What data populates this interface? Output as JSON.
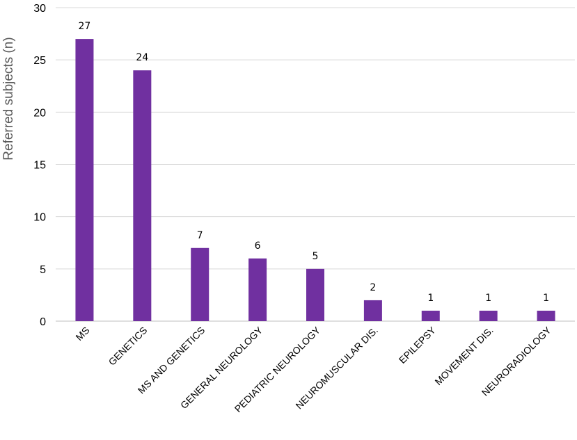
{
  "chart_data": {
    "type": "bar",
    "title": "",
    "xlabel": "",
    "ylabel": "Referred subjects (n)",
    "categories": [
      "MS",
      "GENETICS",
      "MS AND GENETICS",
      "GENERAL NEUROLOGY",
      "PEDIATRIC NEUROLOGY",
      "NEUROMUSCULAR DIS.",
      "EPILEPSY",
      "MOVEMENT DIS.",
      "NEURORADIOLOGY"
    ],
    "values": [
      27,
      24,
      7,
      6,
      5,
      2,
      1,
      1,
      1
    ],
    "data_labels": [
      "27",
      "24",
      "7",
      "6",
      "5",
      "2",
      "1",
      "1",
      "1"
    ],
    "ylim": [
      0,
      30
    ],
    "yticks": [
      0,
      5,
      10,
      15,
      20,
      25,
      30
    ],
    "grid": true,
    "legend": "none",
    "bar_color": "#7030a0"
  }
}
